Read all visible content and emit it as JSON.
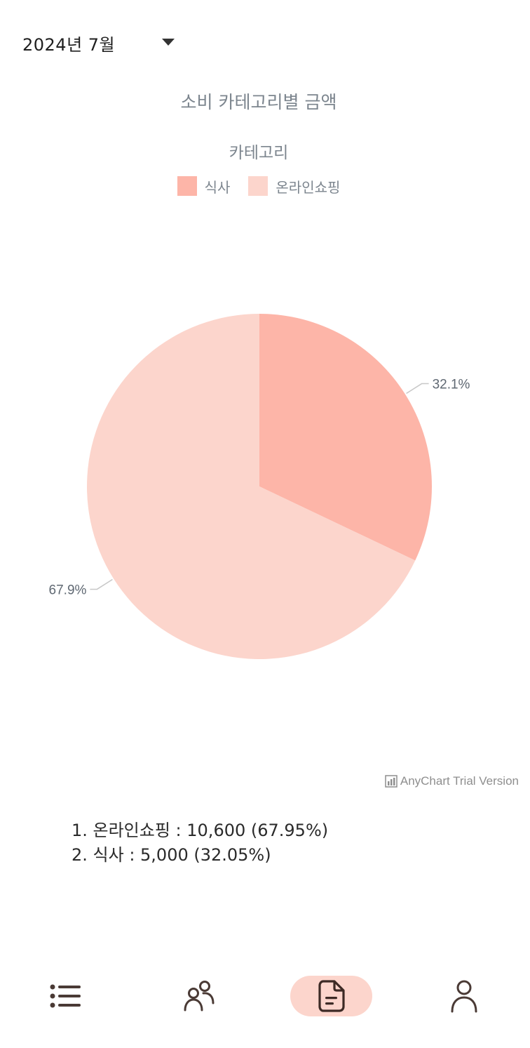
{
  "header": {
    "month_label": "2024년 7월"
  },
  "chart_data": {
    "type": "pie",
    "title": "소비 카테고리별 금액",
    "legend_title": "카테고리",
    "legend_position": "top",
    "categories": [
      "식사",
      "온라인쇼핑"
    ],
    "values": [
      5000,
      10600
    ],
    "labels": [
      "32.1%",
      "67.9%"
    ],
    "colors": [
      "#fdb5a8",
      "#fcd5cc"
    ]
  },
  "watermark": "AnyChart Trial Version",
  "summary": [
    "1. 온라인쇼핑 : 10,600 (67.95%)",
    "2. 식사 : 5,000 (32.05%)"
  ],
  "nav": {
    "items": [
      {
        "icon": "list-icon"
      },
      {
        "icon": "users-icon"
      },
      {
        "icon": "document-icon",
        "active": true
      },
      {
        "icon": "person-icon"
      }
    ]
  },
  "colors": {
    "accent": "#fcd5cc",
    "icon": "#4a3a35"
  }
}
